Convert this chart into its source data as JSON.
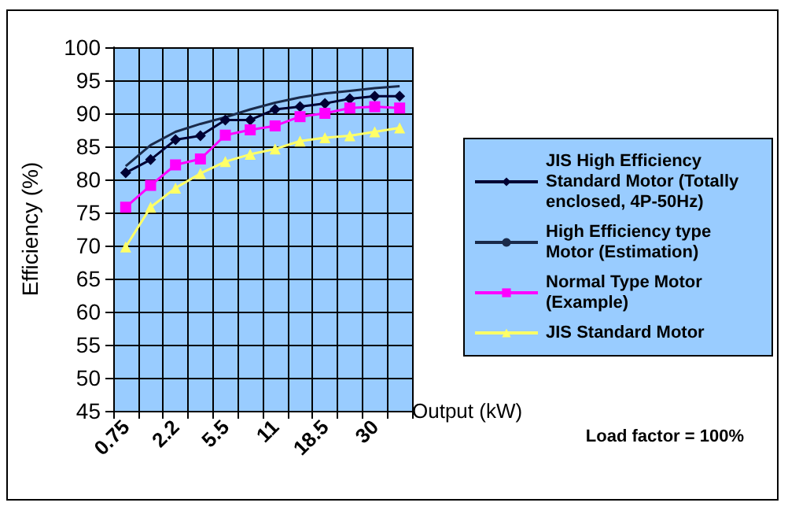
{
  "chart_data": {
    "type": "line",
    "xlabel": "Output (kW)",
    "ylabel": "Efficiency (%)",
    "categories": [
      "0.75",
      null,
      "2.2",
      null,
      "5.5",
      null,
      "11",
      null,
      "18.5",
      null,
      "30",
      null
    ],
    "series": [
      {
        "name": "JIS High Efficiency Standard Motor (Totally enclosed, 4P-50Hz)",
        "color": "#000033",
        "marker": "diamond",
        "values": [
          81,
          83,
          86,
          86.6,
          89,
          89,
          90.6,
          91,
          91.5,
          92.2,
          92.6,
          92.6
        ]
      },
      {
        "name": "High Efficiency type Motor (Estimation)",
        "color": "#1a2a4a",
        "marker": "none",
        "values": [
          82,
          85.2,
          87.2,
          88.4,
          89.4,
          90.6,
          91.6,
          92.4,
          93,
          93.4,
          93.8,
          94.1
        ]
      },
      {
        "name": "Normal Type Motor (Example)",
        "color": "#ff00ff",
        "marker": "square",
        "values": [
          75.8,
          79.1,
          82.2,
          83.1,
          86.7,
          87.5,
          88.1,
          89.5,
          90,
          90.8,
          91,
          90.8
        ]
      },
      {
        "name": "JIS Standard Motor",
        "color": "#ffff66",
        "marker": "triangle",
        "values": [
          69.8,
          75.8,
          78.7,
          80.9,
          82.7,
          83.8,
          84.6,
          85.8,
          86.3,
          86.6,
          87.2,
          87.8
        ]
      }
    ],
    "ylim": [
      45,
      100
    ],
    "yticks": [
      45,
      50,
      55,
      60,
      65,
      70,
      75,
      80,
      85,
      90,
      95,
      100
    ],
    "grid": true,
    "legend": "right",
    "line_style": "solid",
    "annotations": [
      "Load factor = 100%"
    ]
  }
}
